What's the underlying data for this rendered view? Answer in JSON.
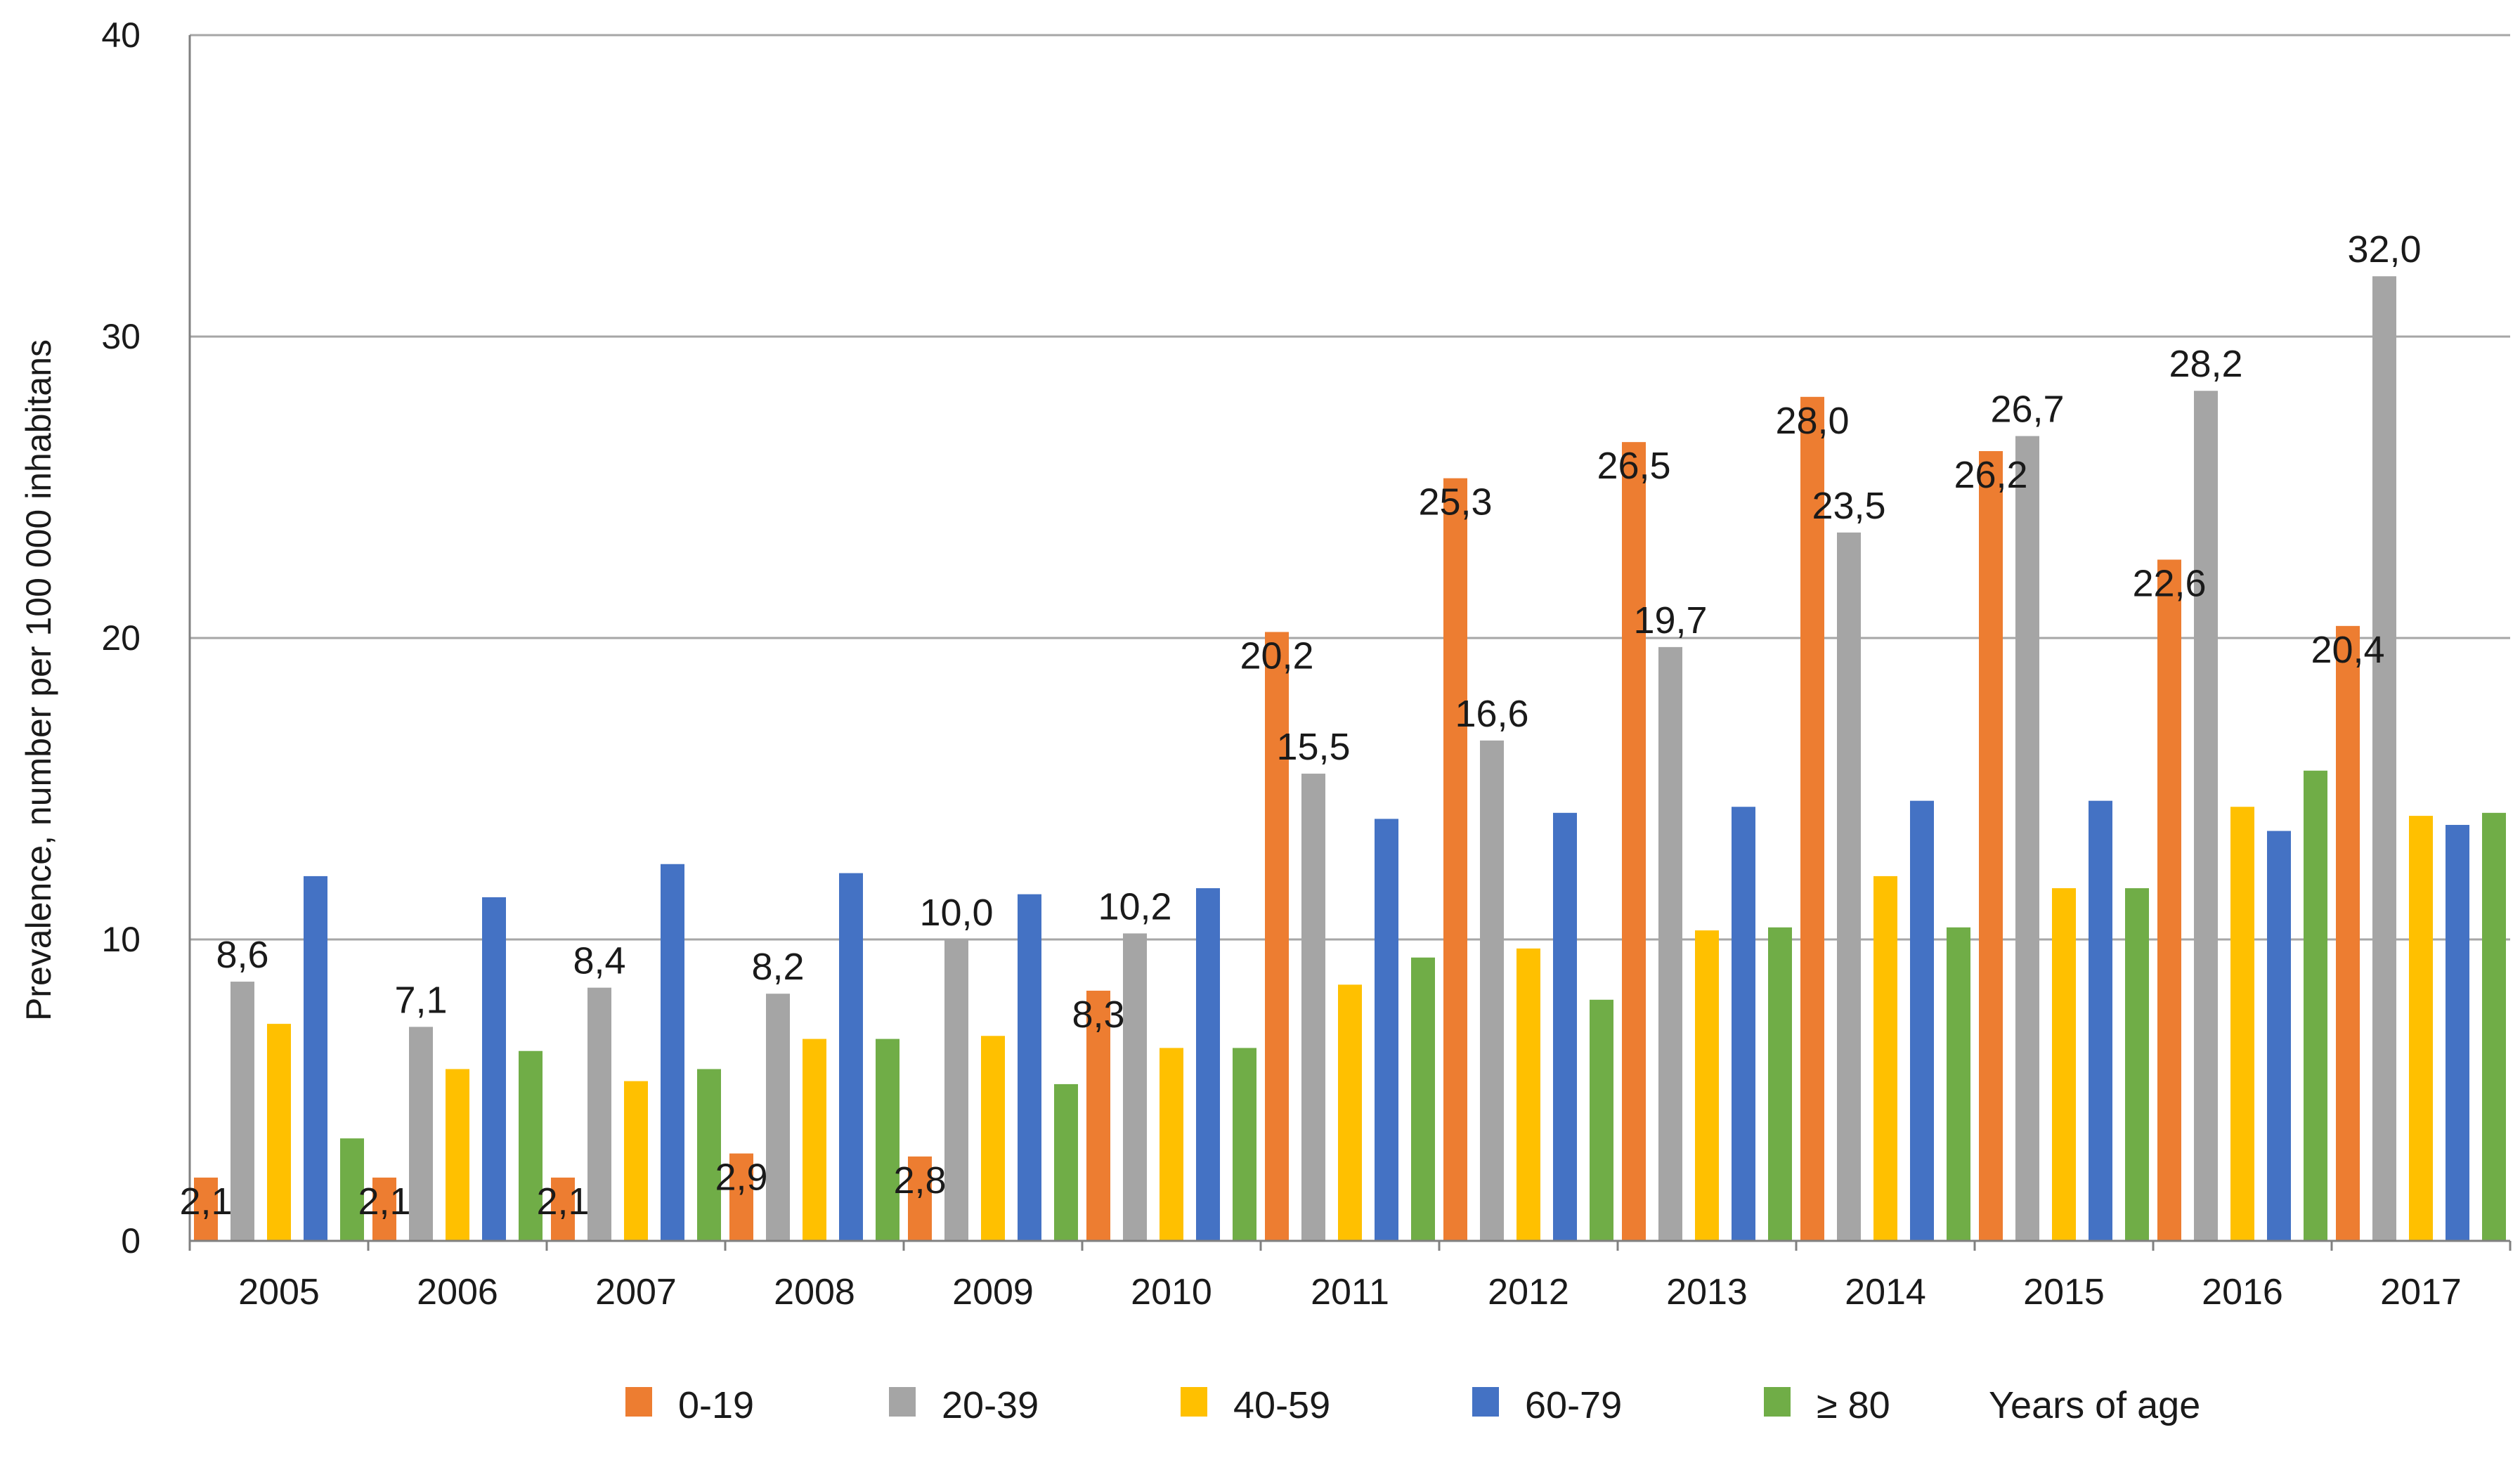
{
  "chart_data": {
    "type": "bar",
    "title": "",
    "xlabel": "",
    "ylabel": "Prevalence, number per 100 000 inhabitans",
    "ylim": [
      0,
      40
    ],
    "yticks": [
      "0",
      "10",
      "20",
      "30",
      "40"
    ],
    "grid": true,
    "legend_position": "bottom",
    "legend_suffix": "Years of age",
    "categories": [
      "2005",
      "2006",
      "2007",
      "2008",
      "2009",
      "2010",
      "2011",
      "2012",
      "2013",
      "2014",
      "2015",
      "2016",
      "2017"
    ],
    "series": [
      {
        "name": "0-19",
        "color": "#ED7D31",
        "values": [
          2.1,
          2.1,
          2.1,
          2.9,
          2.8,
          8.3,
          20.2,
          25.3,
          26.5,
          28.0,
          26.2,
          22.6,
          20.4
        ],
        "labels": [
          "2,1",
          "2,1",
          "2,1",
          "2,9",
          "2,8",
          "8,3",
          "20,2",
          "25,3",
          "26,5",
          "28,0",
          "26,2",
          "22,6",
          "20,4"
        ]
      },
      {
        "name": "20-39",
        "color": "#A5A5A5",
        "values": [
          8.6,
          7.1,
          8.4,
          8.2,
          10.0,
          10.2,
          15.5,
          16.6,
          19.7,
          23.5,
          26.7,
          28.2,
          32.0
        ],
        "labels": [
          "8,6",
          "7,1",
          "8,4",
          "8,2",
          "10,0",
          "10,2",
          "15,5",
          "16,6",
          "19,7",
          "23,5",
          "26,7",
          "28,2",
          "32,0"
        ]
      },
      {
        "name": "40-59",
        "color": "#FFC000",
        "values": [
          7.2,
          5.7,
          5.3,
          6.7,
          6.8,
          6.4,
          8.5,
          9.7,
          10.3,
          12.1,
          11.7,
          14.4,
          14.1
        ],
        "labels": []
      },
      {
        "name": "60-79",
        "color": "#4472C4",
        "values": [
          12.1,
          11.4,
          12.5,
          12.2,
          11.5,
          11.7,
          14.0,
          14.2,
          14.4,
          14.6,
          14.6,
          13.6,
          13.8
        ],
        "labels": []
      },
      {
        "name": "≥ 80",
        "color": "#70AD47",
        "values": [
          3.4,
          6.3,
          5.7,
          6.7,
          5.2,
          6.4,
          9.4,
          8.0,
          10.4,
          10.4,
          11.7,
          15.6,
          14.2
        ],
        "labels": []
      }
    ]
  }
}
